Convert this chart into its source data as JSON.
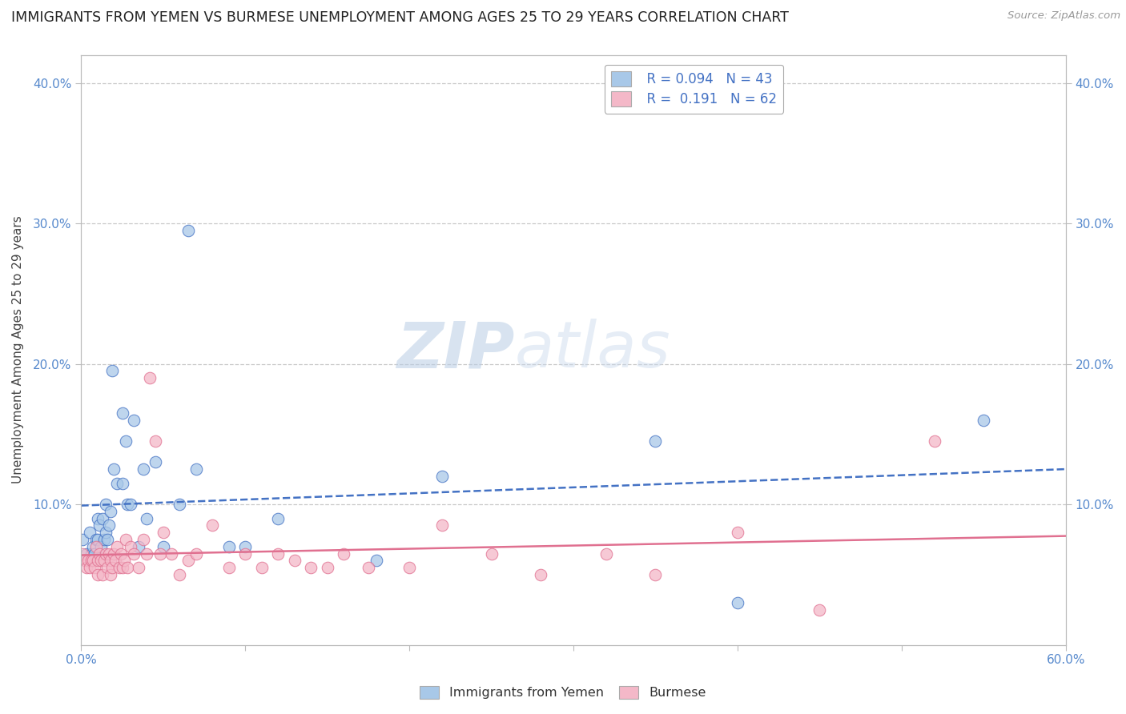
{
  "title": "IMMIGRANTS FROM YEMEN VS BURMESE UNEMPLOYMENT AMONG AGES 25 TO 29 YEARS CORRELATION CHART",
  "source": "Source: ZipAtlas.com",
  "ylabel": "Unemployment Among Ages 25 to 29 years",
  "xlim": [
    0.0,
    0.6
  ],
  "ylim": [
    0.0,
    0.42
  ],
  "yticks": [
    0.1,
    0.2,
    0.3,
    0.4
  ],
  "xticks": [
    0.0,
    0.1,
    0.2,
    0.3,
    0.4,
    0.5,
    0.6
  ],
  "legend_r1": "0.094",
  "legend_n1": "43",
  "legend_r2": "0.191",
  "legend_n2": "62",
  "color_blue": "#a8c8e8",
  "color_pink": "#f4b8c8",
  "line_color_blue": "#4472c4",
  "line_color_pink": "#e07090",
  "watermark_zip": "ZIP",
  "watermark_atlas": "atlas",
  "background_color": "#ffffff",
  "grid_color": "#c8c8c8",
  "blue_x": [
    0.001,
    0.003,
    0.005,
    0.006,
    0.007,
    0.008,
    0.009,
    0.01,
    0.01,
    0.011,
    0.012,
    0.013,
    0.014,
    0.015,
    0.015,
    0.016,
    0.017,
    0.018,
    0.019,
    0.02,
    0.022,
    0.025,
    0.025,
    0.027,
    0.028,
    0.03,
    0.032,
    0.035,
    0.038,
    0.04,
    0.045,
    0.05,
    0.06,
    0.065,
    0.07,
    0.09,
    0.1,
    0.12,
    0.18,
    0.22,
    0.35,
    0.4,
    0.55
  ],
  "blue_y": [
    0.075,
    0.065,
    0.08,
    0.065,
    0.07,
    0.065,
    0.075,
    0.09,
    0.075,
    0.085,
    0.07,
    0.09,
    0.075,
    0.08,
    0.1,
    0.075,
    0.085,
    0.095,
    0.195,
    0.125,
    0.115,
    0.165,
    0.115,
    0.145,
    0.1,
    0.1,
    0.16,
    0.07,
    0.125,
    0.09,
    0.13,
    0.07,
    0.1,
    0.295,
    0.125,
    0.07,
    0.07,
    0.09,
    0.06,
    0.12,
    0.145,
    0.03,
    0.16
  ],
  "pink_x": [
    0.001,
    0.002,
    0.003,
    0.004,
    0.005,
    0.006,
    0.007,
    0.008,
    0.009,
    0.01,
    0.01,
    0.011,
    0.012,
    0.013,
    0.014,
    0.015,
    0.016,
    0.017,
    0.018,
    0.018,
    0.019,
    0.02,
    0.021,
    0.022,
    0.023,
    0.024,
    0.025,
    0.026,
    0.027,
    0.028,
    0.03,
    0.032,
    0.035,
    0.038,
    0.04,
    0.042,
    0.045,
    0.048,
    0.05,
    0.055,
    0.06,
    0.065,
    0.07,
    0.08,
    0.09,
    0.1,
    0.11,
    0.12,
    0.13,
    0.14,
    0.15,
    0.16,
    0.175,
    0.2,
    0.22,
    0.25,
    0.28,
    0.32,
    0.35,
    0.4,
    0.45,
    0.52
  ],
  "pink_y": [
    0.065,
    0.06,
    0.055,
    0.06,
    0.055,
    0.06,
    0.06,
    0.055,
    0.07,
    0.06,
    0.05,
    0.065,
    0.06,
    0.05,
    0.06,
    0.065,
    0.055,
    0.065,
    0.06,
    0.05,
    0.055,
    0.065,
    0.06,
    0.07,
    0.055,
    0.065,
    0.055,
    0.06,
    0.075,
    0.055,
    0.07,
    0.065,
    0.055,
    0.075,
    0.065,
    0.19,
    0.145,
    0.065,
    0.08,
    0.065,
    0.05,
    0.06,
    0.065,
    0.085,
    0.055,
    0.065,
    0.055,
    0.065,
    0.06,
    0.055,
    0.055,
    0.065,
    0.055,
    0.055,
    0.085,
    0.065,
    0.05,
    0.065,
    0.05,
    0.08,
    0.025,
    0.145
  ]
}
